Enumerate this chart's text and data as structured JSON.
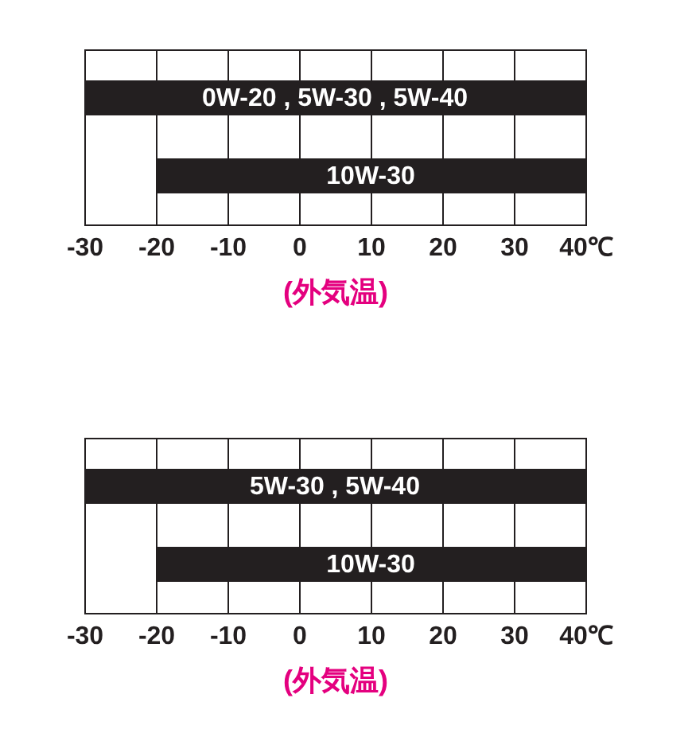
{
  "chart_data": [
    {
      "type": "bar",
      "orientation": "horizontal",
      "categories": [
        "0W-20 , 5W-30 , 5W-40",
        "10W-30"
      ],
      "base": [
        -30,
        -20
      ],
      "values": [
        70,
        60
      ],
      "color": "#231f20",
      "xlim": [
        -30,
        40
      ],
      "xticks": [
        -30,
        -20,
        -10,
        0,
        10,
        20,
        30,
        {
          "value": 40,
          "label": "40℃"
        }
      ],
      "xlabel": "(外気温)",
      "grid": "x",
      "tick_labels": "x"
    },
    {
      "type": "bar",
      "orientation": "horizontal",
      "categories": [
        "5W-30 , 5W-40",
        "10W-30"
      ],
      "base": [
        -30,
        -20
      ],
      "values": [
        70,
        60
      ],
      "color": "#231f20",
      "xlim": [
        -30,
        40
      ],
      "xticks": [
        -30,
        -20,
        -10,
        0,
        10,
        20,
        30,
        {
          "value": 40,
          "label": "40℃"
        }
      ],
      "xlabel": "(外気温)",
      "grid": "x",
      "tick_labels": "x"
    }
  ]
}
